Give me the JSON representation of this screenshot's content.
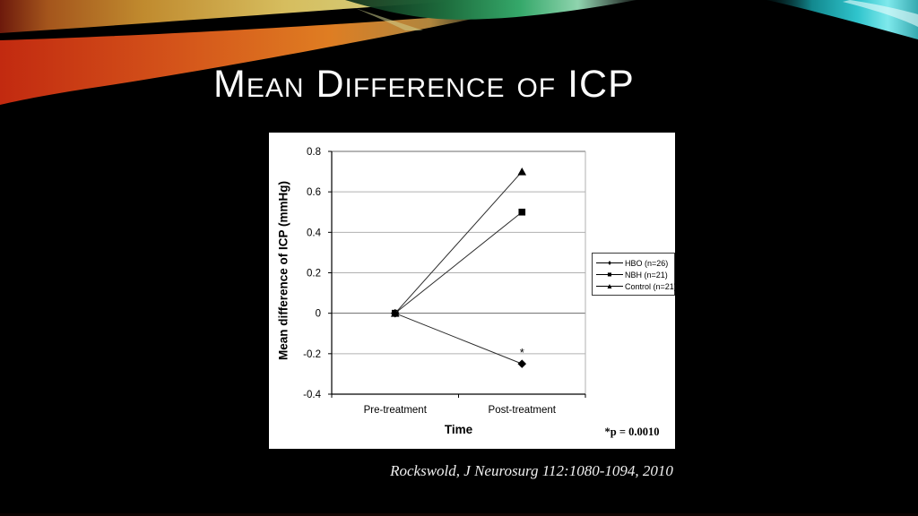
{
  "slide": {
    "title": "Mean Difference of ICP",
    "citation": "Rockswold, J Neurosurg 112:1080-1094, 2010"
  },
  "theme": {
    "background": "#000000",
    "title_color": "#fbfbfb",
    "panel_bg": "#ffffff",
    "ribbon": {
      "gold": "#d6bd5e",
      "red": "#c22a10",
      "orange": "#df7d22",
      "green": "#35a86a",
      "cyan": "#2fc4cc"
    }
  },
  "chart_data": {
    "type": "line",
    "categories": [
      "Pre-treatment",
      "Post-treatment"
    ],
    "series": [
      {
        "name": "HBO (n=26)",
        "marker": "diamond",
        "color": "#000000",
        "values": [
          0,
          -0.25
        ],
        "point_annotation": {
          "index": 1,
          "text": "*"
        }
      },
      {
        "name": "NBH (n=21)",
        "marker": "square",
        "color": "#000000",
        "values": [
          0,
          0.5
        ]
      },
      {
        "name": "Control (n=21)",
        "marker": "triangle",
        "color": "#000000",
        "values": [
          0,
          0.7
        ]
      }
    ],
    "xlabel": "Time",
    "ylabel": "Mean difference of ICP (mmHg)",
    "ylim": [
      -0.4,
      0.8
    ],
    "yticks": [
      -0.4,
      -0.2,
      0,
      0.2,
      0.4,
      0.6,
      0.8
    ],
    "grid": true,
    "legend_position": "right",
    "footnote": "*p = 0.0010"
  }
}
